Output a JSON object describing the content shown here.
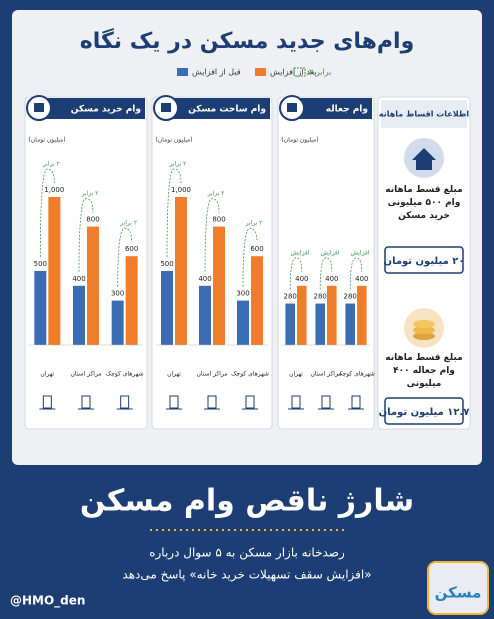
{
  "title": "وام‌های جدید مسکن در یک نگاه",
  "legend_note": "۲ برابر",
  "unit": "(میلیون تومان)",
  "chart_data": [
    {
      "type": "bar",
      "title": "وام خرید مسکن",
      "categories": [
        "تهران",
        "مراکز استان",
        "شهرهای کوچک"
      ],
      "series": [
        {
          "name": "قبل از افزایش",
          "color": "#3b6db3",
          "values": [
            500,
            400,
            300
          ]
        },
        {
          "name": "بعد از افزایش",
          "color": "#ef7d2b",
          "values": [
            1000,
            800,
            600
          ],
          "value_labels": [
            "1,000",
            "800",
            "600"
          ]
        }
      ],
      "annotations": [
        "۲ برابر",
        "۲ برابر",
        "۲ برابر"
      ]
    },
    {
      "type": "bar",
      "title": "وام ساخت مسکن",
      "categories": [
        "تهران",
        "مراکز استان",
        "شهرهای کوچک"
      ],
      "series": [
        {
          "color": "#3b6db3",
          "values": [
            500,
            400,
            300
          ]
        },
        {
          "color": "#ef7d2b",
          "values": [
            1000,
            800,
            600
          ],
          "value_labels": [
            "1,000",
            "800",
            "600"
          ]
        }
      ],
      "annotations": [
        "۲ برابر",
        "۲ برابر",
        "۲ برابر"
      ]
    },
    {
      "type": "bar",
      "title": "وام جعاله",
      "categories": [
        "تهران",
        "مراکز استان",
        "شهرهای کوچک"
      ],
      "series": [
        {
          "color": "#3b6db3",
          "values": [
            280,
            280,
            280
          ]
        },
        {
          "color": "#ef7d2b",
          "values": [
            400,
            400,
            400
          ]
        }
      ],
      "annotations": [
        "افزایش",
        "افزایش",
        "افزایش"
      ]
    }
  ],
  "info": {
    "title": "اطلاعات اقساط ماهانه",
    "items": [
      {
        "text": "مبلغ قسط ماهانه وام ۵۰۰ میلیونی خرید مسکن",
        "amount": "۲۰ میلیون تومان"
      },
      {
        "text": "مبلغ قسط ماهانه وام جعاله ۴۰۰ میلیونی",
        "amount": "۱۲.۷ میلیون تومان"
      }
    ]
  },
  "headline": "شارژ ناقص وام مسکن",
  "subtitle": [
    "رصدخانه بازار مسکن به ۵ سوال درباره",
    "«افزایش سقف تسهیلات خرید خانه» پاسخ می‌دهد"
  ],
  "handle": "@HMO_den",
  "logo": "مسکن"
}
